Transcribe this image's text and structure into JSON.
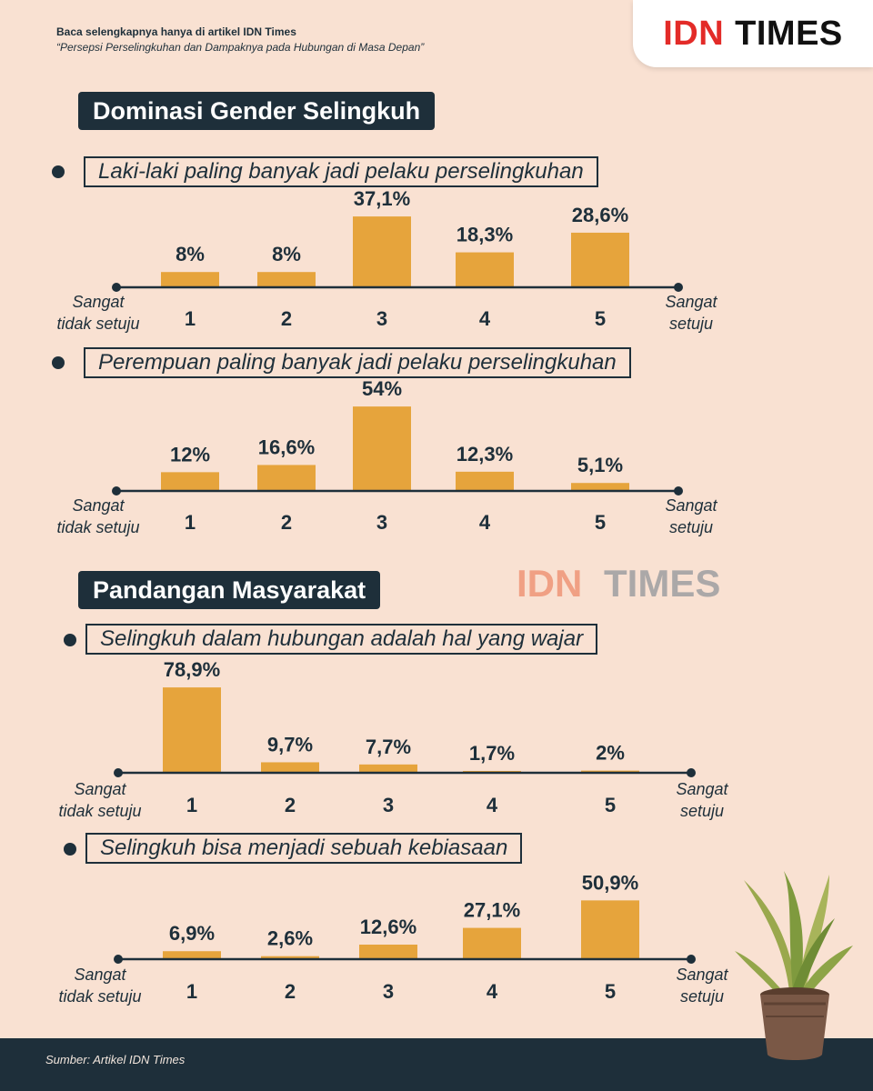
{
  "header": {
    "source": "Baca selengkapnya hanya di artikel IDN Times",
    "article": "“Persepsi Perselingkuhan dan Dampaknya pada Hubungan di Masa Depan”"
  },
  "logo": {
    "idn": "IDN",
    "times": "TIMES"
  },
  "watermark": {
    "idn": "IDN",
    "times": "TIMES"
  },
  "colors": {
    "background": "#f9e1d2",
    "bar": "#e6a43c",
    "dark": "#1e2f3a",
    "logo_red": "#e32b28"
  },
  "sections": [
    {
      "title": "Dominasi Gender Selingkuh"
    },
    {
      "title": "Pandangan Masyarakat"
    }
  ],
  "chart_data": [
    {
      "type": "bar",
      "title": "Laki-laki paling banyak jadi pelaku perselingkuhan",
      "categories": [
        "1",
        "2",
        "3",
        "4",
        "5"
      ],
      "values": [
        8,
        8,
        37.1,
        18.3,
        28.6
      ],
      "value_labels": [
        "8%",
        "8%",
        "37,1%",
        "18,3%",
        "28,6%"
      ],
      "left_label": [
        "Sangat",
        "tidak setuju"
      ],
      "right_label": [
        "Sangat",
        "setuju"
      ]
    },
    {
      "type": "bar",
      "title": "Perempuan paling banyak jadi pelaku perselingkuhan",
      "categories": [
        "1",
        "2",
        "3",
        "4",
        "5"
      ],
      "values": [
        12,
        16.6,
        54,
        12.3,
        5.1
      ],
      "value_labels": [
        "12%",
        "16,6%",
        "54%",
        "12,3%",
        "5,1%"
      ],
      "left_label": [
        "Sangat",
        "tidak setuju"
      ],
      "right_label": [
        "Sangat",
        "setuju"
      ]
    },
    {
      "type": "bar",
      "title": "Selingkuh dalam hubungan adalah hal yang wajar",
      "categories": [
        "1",
        "2",
        "3",
        "4",
        "5"
      ],
      "values": [
        78.9,
        9.7,
        7.7,
        1.7,
        2
      ],
      "value_labels": [
        "78,9%",
        "9,7%",
        "7,7%",
        "1,7%",
        "2%"
      ],
      "left_label": [
        "Sangat",
        "tidak setuju"
      ],
      "right_label": [
        "Sangat",
        "setuju"
      ]
    },
    {
      "type": "bar",
      "title": "Selingkuh bisa menjadi sebuah kebiasaan",
      "categories": [
        "1",
        "2",
        "3",
        "4",
        "5"
      ],
      "values": [
        6.9,
        2.6,
        12.6,
        27.1,
        50.9
      ],
      "value_labels": [
        "6,9%",
        "2,6%",
        "12,6%",
        "27,1%",
        "50,9%"
      ],
      "left_label": [
        "Sangat",
        "tidak setuju"
      ],
      "right_label": [
        "Sangat",
        "setuju"
      ]
    }
  ],
  "footer": {
    "source": "Sumber: Artikel IDN Times"
  }
}
